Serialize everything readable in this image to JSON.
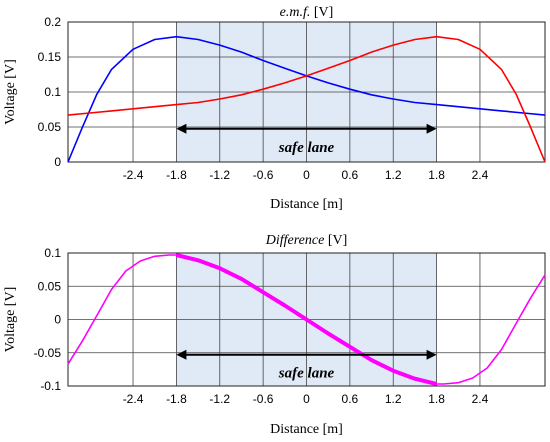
{
  "chart_data": [
    {
      "type": "line",
      "title_main": "e.m.f.",
      "title_unit": "[V]",
      "xlabel": "Distance [m]",
      "ylabel": "Voltage [V]",
      "xlim": [
        -3.3,
        3.3
      ],
      "ylim": [
        0,
        0.2
      ],
      "xticks": [
        "-2.4",
        "-1.8",
        "-1.2",
        "-0.6",
        "0",
        "0.6",
        "1.2",
        "1.8",
        "2.4"
      ],
      "yticks": [
        "0",
        "0.05",
        "0.1",
        "0.15",
        "0.2"
      ],
      "grid": true,
      "shaded_region": [
        -1.8,
        1.8
      ],
      "annotation": {
        "text": "safe lane",
        "from": -1.8,
        "to": 1.8,
        "y": 0.0475
      },
      "series": [
        {
          "color": "#0000ff",
          "x": [
            -3.3,
            -3.1,
            -2.9,
            -2.7,
            -2.4,
            -2.1,
            -1.8,
            -1.5,
            -1.2,
            -0.9,
            -0.6,
            -0.3,
            0,
            0.3,
            0.6,
            0.9,
            1.2,
            1.5,
            1.8,
            2.1,
            2.4,
            2.7,
            3.0,
            3.3
          ],
          "y": [
            0.0,
            0.05,
            0.097,
            0.132,
            0.161,
            0.175,
            0.179,
            0.175,
            0.167,
            0.157,
            0.145,
            0.134,
            0.123,
            0.113,
            0.104,
            0.096,
            0.09,
            0.085,
            0.082,
            0.079,
            0.076,
            0.073,
            0.07,
            0.067
          ]
        },
        {
          "color": "#ff0000",
          "x": [
            -3.3,
            -3.0,
            -2.7,
            -2.4,
            -2.1,
            -1.8,
            -1.5,
            -1.2,
            -0.9,
            -0.6,
            -0.3,
            0,
            0.3,
            0.6,
            0.9,
            1.2,
            1.5,
            1.8,
            2.1,
            2.4,
            2.7,
            2.9,
            3.1,
            3.3
          ],
          "y": [
            0.067,
            0.07,
            0.073,
            0.076,
            0.079,
            0.082,
            0.085,
            0.09,
            0.096,
            0.104,
            0.113,
            0.123,
            0.134,
            0.145,
            0.157,
            0.167,
            0.175,
            0.179,
            0.175,
            0.161,
            0.132,
            0.097,
            0.05,
            0.0
          ]
        }
      ]
    },
    {
      "type": "line",
      "title_main": "Difference",
      "title_unit": "[V]",
      "xlabel": "Distance [m]",
      "ylabel": "Voltage [V]",
      "xlim": [
        -3.3,
        3.3
      ],
      "ylim": [
        -0.1,
        0.1
      ],
      "xticks": [
        "-2.4",
        "-1.8",
        "-1.2",
        "-0.6",
        "0",
        "0.6",
        "1.2",
        "1.8",
        "2.4"
      ],
      "yticks": [
        "0.1",
        "0.05",
        "0",
        "-0.05",
        "-0.1"
      ],
      "grid": true,
      "shaded_region": [
        -1.8,
        1.8
      ],
      "annotation": {
        "text": "safe lane",
        "from": -1.8,
        "to": 1.8,
        "y": -0.053
      },
      "series": [
        {
          "color": "#ff00ff",
          "x": [
            -3.3,
            -3.1,
            -2.9,
            -2.7,
            -2.5,
            -2.3,
            -2.1,
            -1.9,
            -1.8,
            -1.5,
            -1.2,
            -0.9,
            -0.6,
            -0.3,
            0,
            0.3,
            0.6,
            0.9,
            1.2,
            1.5,
            1.8,
            1.9,
            2.1,
            2.3,
            2.5,
            2.7,
            2.9,
            3.1,
            3.3
          ],
          "y": [
            -0.067,
            -0.032,
            0.006,
            0.045,
            0.073,
            0.088,
            0.095,
            0.097,
            0.097,
            0.089,
            0.077,
            0.061,
            0.041,
            0.021,
            0.0,
            -0.021,
            -0.041,
            -0.061,
            -0.077,
            -0.089,
            -0.097,
            -0.097,
            -0.095,
            -0.088,
            -0.073,
            -0.045,
            -0.006,
            0.032,
            0.067
          ],
          "highlight_range": [
            -1.8,
            1.8
          ]
        }
      ]
    }
  ]
}
